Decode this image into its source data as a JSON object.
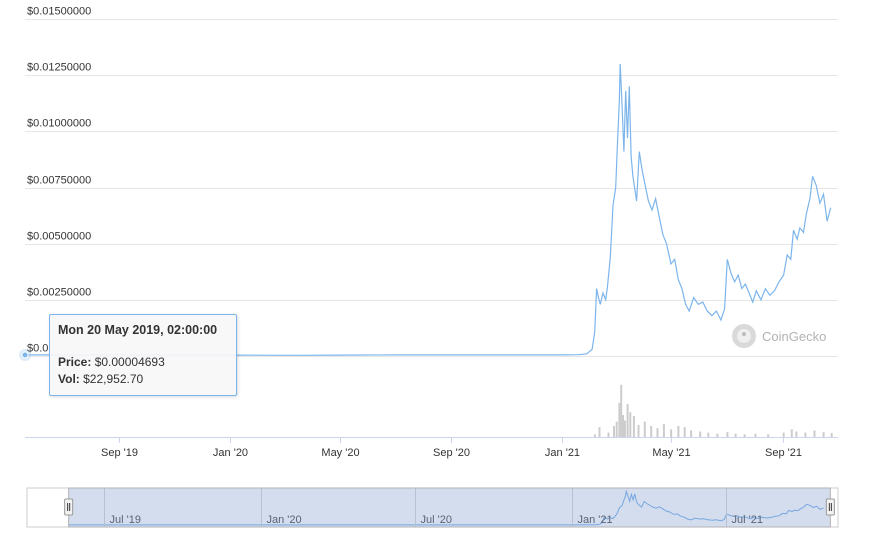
{
  "chart_data": {
    "type": "line",
    "y_axis": {
      "min": 0,
      "max": 0.015,
      "ticks": [
        0.0,
        0.0025,
        0.005,
        0.0075,
        0.01,
        0.0125,
        0.015
      ],
      "tick_labels": [
        "$0.0",
        "$0.00250000",
        "$0.00500000",
        "$0.00750000",
        "$0.01000000",
        "$0.01250000",
        "$0.01500000"
      ]
    },
    "x_axis": {
      "range": [
        "2019-05-20",
        "2021-11-01"
      ],
      "ticks": [
        {
          "date": "2019-09-01",
          "label": "Sep '19"
        },
        {
          "date": "2020-01-01",
          "label": "Jan '20"
        },
        {
          "date": "2020-05-01",
          "label": "May '20"
        },
        {
          "date": "2020-09-01",
          "label": "Sep '20"
        },
        {
          "date": "2021-01-01",
          "label": "Jan '21"
        },
        {
          "date": "2021-05-01",
          "label": "May '21"
        },
        {
          "date": "2021-09-01",
          "label": "Sep '21"
        }
      ]
    },
    "series": [
      {
        "type": "price",
        "color": "#7cb5ec",
        "points": [
          [
            "2019-05-20",
            4.69e-05
          ],
          [
            "2019-07-01",
            5e-05
          ],
          [
            "2019-09-01",
            5e-05
          ],
          [
            "2019-11-01",
            4e-05
          ],
          [
            "2020-01-01",
            4e-05
          ],
          [
            "2020-03-15",
            3e-05
          ],
          [
            "2020-05-01",
            4e-05
          ],
          [
            "2020-07-01",
            5e-05
          ],
          [
            "2020-09-01",
            5e-05
          ],
          [
            "2020-11-01",
            5e-05
          ],
          [
            "2021-01-01",
            5e-05
          ],
          [
            "2021-01-20",
            6e-05
          ],
          [
            "2021-01-28",
            0.0001
          ],
          [
            "2021-02-03",
            0.0003
          ],
          [
            "2021-02-06",
            0.0011
          ],
          [
            "2021-02-08",
            0.003
          ],
          [
            "2021-02-10",
            0.0026
          ],
          [
            "2021-02-12",
            0.0023
          ],
          [
            "2021-02-15",
            0.0028
          ],
          [
            "2021-02-18",
            0.0025
          ],
          [
            "2021-02-20",
            0.0031
          ],
          [
            "2021-02-23",
            0.0044
          ],
          [
            "2021-02-26",
            0.0067
          ],
          [
            "2021-03-01",
            0.0075
          ],
          [
            "2021-03-03",
            0.0095
          ],
          [
            "2021-03-05",
            0.0113
          ],
          [
            "2021-03-06",
            0.013
          ],
          [
            "2021-03-08",
            0.0112
          ],
          [
            "2021-03-10",
            0.0091
          ],
          [
            "2021-03-12",
            0.0118
          ],
          [
            "2021-03-14",
            0.0097
          ],
          [
            "2021-03-16",
            0.012
          ],
          [
            "2021-03-18",
            0.0089
          ],
          [
            "2021-03-20",
            0.008
          ],
          [
            "2021-03-24",
            0.0069
          ],
          [
            "2021-03-27",
            0.0091
          ],
          [
            "2021-03-30",
            0.0083
          ],
          [
            "2021-04-02",
            0.0077
          ],
          [
            "2021-04-06",
            0.0069
          ],
          [
            "2021-04-10",
            0.0065
          ],
          [
            "2021-04-14",
            0.007
          ],
          [
            "2021-04-18",
            0.0062
          ],
          [
            "2021-04-22",
            0.0054
          ],
          [
            "2021-04-26",
            0.005
          ],
          [
            "2021-05-01",
            0.0041
          ],
          [
            "2021-05-05",
            0.0043
          ],
          [
            "2021-05-09",
            0.0034
          ],
          [
            "2021-05-13",
            0.003
          ],
          [
            "2021-05-17",
            0.0023
          ],
          [
            "2021-05-21",
            0.002
          ],
          [
            "2021-05-26",
            0.0026
          ],
          [
            "2021-05-31",
            0.0023
          ],
          [
            "2021-06-05",
            0.0024
          ],
          [
            "2021-06-10",
            0.002
          ],
          [
            "2021-06-15",
            0.0018
          ],
          [
            "2021-06-20",
            0.002
          ],
          [
            "2021-06-25",
            0.0016
          ],
          [
            "2021-06-29",
            0.0021
          ],
          [
            "2021-07-02",
            0.0043
          ],
          [
            "2021-07-06",
            0.0037
          ],
          [
            "2021-07-10",
            0.0033
          ],
          [
            "2021-07-14",
            0.0036
          ],
          [
            "2021-07-18",
            0.003
          ],
          [
            "2021-07-22",
            0.0032
          ],
          [
            "2021-07-26",
            0.0028
          ],
          [
            "2021-07-30",
            0.0024
          ],
          [
            "2021-08-03",
            0.0029
          ],
          [
            "2021-08-08",
            0.0025
          ],
          [
            "2021-08-13",
            0.003
          ],
          [
            "2021-08-18",
            0.0027
          ],
          [
            "2021-08-23",
            0.0029
          ],
          [
            "2021-08-28",
            0.0033
          ],
          [
            "2021-09-02",
            0.0036
          ],
          [
            "2021-09-06",
            0.0045
          ],
          [
            "2021-09-10",
            0.0043
          ],
          [
            "2021-09-13",
            0.0056
          ],
          [
            "2021-09-17",
            0.0052
          ],
          [
            "2021-09-20",
            0.0057
          ],
          [
            "2021-09-24",
            0.0055
          ],
          [
            "2021-09-27",
            0.0063
          ],
          [
            "2021-10-01",
            0.007
          ],
          [
            "2021-10-04",
            0.008
          ],
          [
            "2021-10-08",
            0.0076
          ],
          [
            "2021-10-12",
            0.0068
          ],
          [
            "2021-10-16",
            0.0072
          ],
          [
            "2021-10-20",
            0.006
          ],
          [
            "2021-10-24",
            0.0066
          ]
        ]
      },
      {
        "type": "volume",
        "color": "#cccccc",
        "points": [
          [
            "2021-02-05",
            5
          ],
          [
            "2021-02-10",
            18
          ],
          [
            "2021-02-20",
            8
          ],
          [
            "2021-02-26",
            20
          ],
          [
            "2021-03-01",
            28
          ],
          [
            "2021-03-04",
            62
          ],
          [
            "2021-03-06",
            95
          ],
          [
            "2021-03-08",
            40
          ],
          [
            "2021-03-10",
            30
          ],
          [
            "2021-03-13",
            60
          ],
          [
            "2021-03-16",
            45
          ],
          [
            "2021-03-20",
            38
          ],
          [
            "2021-03-25",
            22
          ],
          [
            "2021-04-01",
            28
          ],
          [
            "2021-04-08",
            20
          ],
          [
            "2021-04-15",
            16
          ],
          [
            "2021-04-22",
            24
          ],
          [
            "2021-04-30",
            14
          ],
          [
            "2021-05-08",
            20
          ],
          [
            "2021-05-15",
            18
          ],
          [
            "2021-05-22",
            12
          ],
          [
            "2021-06-01",
            10
          ],
          [
            "2021-06-10",
            8
          ],
          [
            "2021-06-20",
            6
          ],
          [
            "2021-07-01",
            9
          ],
          [
            "2021-07-10",
            6
          ],
          [
            "2021-07-20",
            5
          ],
          [
            "2021-08-01",
            6
          ],
          [
            "2021-08-15",
            5
          ],
          [
            "2021-09-01",
            8
          ],
          [
            "2021-09-10",
            14
          ],
          [
            "2021-09-15",
            10
          ],
          [
            "2021-09-25",
            8
          ],
          [
            "2021-10-05",
            12
          ],
          [
            "2021-10-15",
            9
          ],
          [
            "2021-10-24",
            7
          ]
        ]
      }
    ],
    "navigator": {
      "range": [
        "2019-04-01",
        "2021-11-10"
      ],
      "ticks": [
        {
          "date": "2019-07-01",
          "label": "Jul '19"
        },
        {
          "date": "2020-01-01",
          "label": "Jan '20"
        },
        {
          "date": "2020-07-01",
          "label": "Jul '20"
        },
        {
          "date": "2021-01-01",
          "label": "Jan '21"
        },
        {
          "date": "2021-07-01",
          "label": "Jul '21"
        }
      ]
    }
  },
  "tooltip": {
    "date": "Mon 20 May 2019, 02:00:00",
    "price_label": "Price:",
    "price_value": "$0.00004693",
    "vol_label": "Vol:",
    "vol_value": "$22,952.70"
  },
  "watermark": {
    "text": "CoinGecko"
  }
}
